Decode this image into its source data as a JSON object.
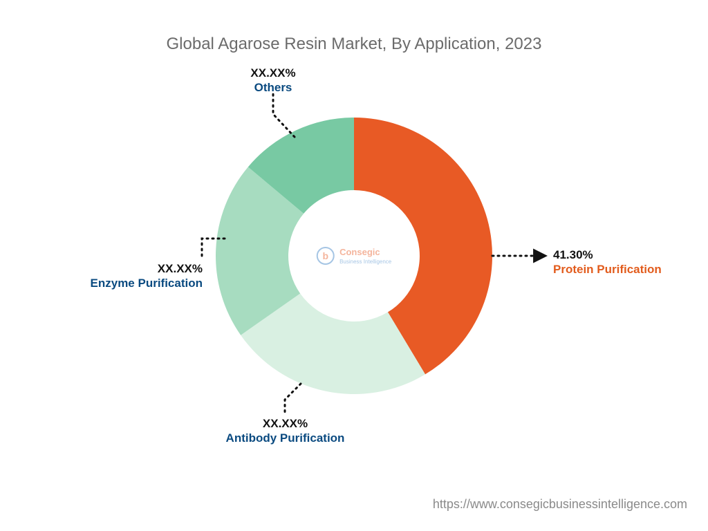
{
  "title": "Global Agarose Resin Market, By Application, 2023",
  "chart": {
    "type": "donut",
    "outer_radius": 200,
    "inner_radius": 95,
    "background_color": "#ffffff",
    "slices": [
      {
        "name": "Protein Purification",
        "value_pct": 41.3,
        "start_deg": 0,
        "end_deg": 149,
        "color": "#e85a25"
      },
      {
        "name": "Antibody Purification",
        "value_pct": null,
        "start_deg": 149,
        "end_deg": 235,
        "color": "#d9f0e2"
      },
      {
        "name": "Enzyme Purification",
        "value_pct": null,
        "start_deg": 235,
        "end_deg": 310,
        "color": "#a7dcc0"
      },
      {
        "name": "Others",
        "value_pct": null,
        "start_deg": 310,
        "end_deg": 360,
        "color": "#78c9a3"
      }
    ]
  },
  "callouts": {
    "protein": {
      "pct": "41.30%",
      "label": "Protein Purification"
    },
    "antibody": {
      "pct": "XX.XX%",
      "label": "Antibody Purification"
    },
    "enzyme": {
      "pct": "XX.XX%",
      "label": "Enzyme Purification"
    },
    "others": {
      "pct": "XX.XX%",
      "label": "Others"
    }
  },
  "center_logo": {
    "brand": "Consegic",
    "tagline": "Business Intelligence"
  },
  "leader_style": {
    "stroke": "#111111",
    "stroke_width": 3,
    "dash": "2 6",
    "arrow_fill": "#111111"
  },
  "text_colors": {
    "title": "#6b6b6b",
    "pct": "#111111",
    "label_primary": "#0a4a80",
    "label_highlight": "#e25c1d",
    "footer": "#8a8a8a"
  },
  "font_sizes_pt": {
    "title": 18,
    "callout": 13,
    "footer": 13
  },
  "footer_url": "https://www.consegicbusinessintelligence.com"
}
